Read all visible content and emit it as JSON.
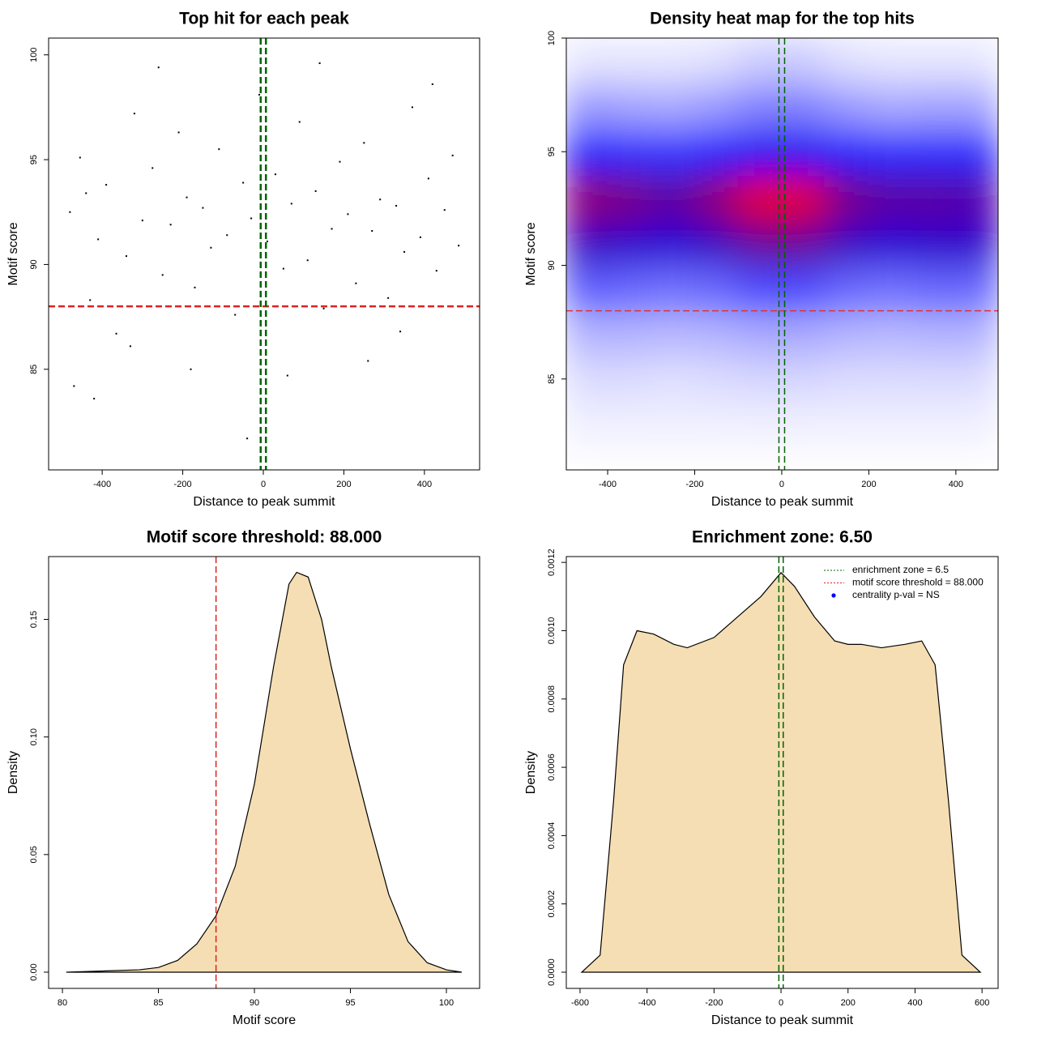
{
  "chart_data": [
    {
      "type": "scatter",
      "title": "Top hit for each peak",
      "x_label": "Distance to peak summit",
      "y_label": "Motif score",
      "xlim": [
        -533,
        537
      ],
      "ylim": [
        80.2,
        100.8
      ],
      "xticks": [
        -400,
        -200,
        0,
        200,
        400
      ],
      "yticks": [
        85,
        90,
        95,
        100
      ],
      "color": "#000000",
      "x": [
        -480,
        -455,
        -430,
        -410,
        -390,
        -365,
        -340,
        -320,
        -300,
        -275,
        -250,
        -230,
        -210,
        -190,
        -170,
        -150,
        -130,
        -110,
        -90,
        -70,
        -50,
        -30,
        -10,
        10,
        30,
        50,
        70,
        90,
        110,
        130,
        150,
        170,
        190,
        210,
        230,
        250,
        270,
        290,
        310,
        330,
        350,
        370,
        390,
        410,
        430,
        450,
        470,
        485,
        -470,
        -420,
        -330,
        -260,
        -180,
        -40,
        60,
        140,
        260,
        340,
        420,
        -440
      ],
      "y": [
        92.5,
        95.1,
        88.3,
        91.2,
        93.8,
        86.7,
        90.4,
        97.2,
        92.1,
        94.6,
        89.5,
        91.9,
        96.3,
        93.2,
        88.9,
        92.7,
        90.8,
        95.5,
        91.4,
        87.6,
        93.9,
        92.2,
        98.1,
        91.1,
        94.3,
        89.8,
        92.9,
        96.8,
        90.2,
        93.5,
        87.9,
        91.7,
        94.9,
        92.4,
        89.1,
        95.8,
        91.6,
        93.1,
        88.4,
        92.8,
        90.6,
        97.5,
        91.3,
        94.1,
        89.7,
        92.6,
        95.2,
        90.9,
        84.2,
        83.6,
        86.1,
        99.4,
        85.0,
        81.7,
        84.7,
        99.6,
        85.4,
        86.8,
        98.6,
        93.4
      ],
      "reference_lines": [
        {
          "axis": "y",
          "value": 88,
          "color": "#dd2222"
        },
        {
          "axis": "x",
          "value": -6.5,
          "color": "#006400"
        },
        {
          "axis": "x",
          "value": 6.5,
          "color": "#006400"
        }
      ]
    },
    {
      "type": "heatmap",
      "title": "Density heat map for the top hits",
      "x_label": "Distance to peak summit",
      "y_label": "Motif score",
      "xlim": [
        -495,
        497
      ],
      "ylim": [
        81,
        100
      ],
      "xticks": [
        -400,
        -200,
        0,
        200,
        400
      ],
      "yticks": [
        85,
        90,
        95,
        100
      ],
      "colors": [
        "#ffffff",
        "#0000ff",
        "#ff0000"
      ],
      "x": [
        -450,
        -350,
        -250,
        -150,
        -50,
        50,
        150,
        250,
        350,
        450
      ],
      "y": [
        83,
        85,
        87,
        89,
        91,
        93,
        95,
        97,
        99
      ],
      "z": [
        [
          0.03,
          0.03,
          0.03,
          0.03,
          0.03,
          0.03,
          0.03,
          0.03,
          0.03,
          0.03
        ],
        [
          0.07,
          0.07,
          0.06,
          0.07,
          0.08,
          0.08,
          0.07,
          0.07,
          0.07,
          0.07
        ],
        [
          0.15,
          0.15,
          0.14,
          0.15,
          0.17,
          0.17,
          0.15,
          0.14,
          0.15,
          0.15
        ],
        [
          0.32,
          0.3,
          0.28,
          0.3,
          0.36,
          0.36,
          0.3,
          0.28,
          0.3,
          0.3
        ],
        [
          0.62,
          0.6,
          0.58,
          0.62,
          0.7,
          0.7,
          0.62,
          0.58,
          0.6,
          0.6
        ],
        [
          0.78,
          0.74,
          0.68,
          0.78,
          0.95,
          0.95,
          0.74,
          0.68,
          0.68,
          0.66
        ],
        [
          0.44,
          0.42,
          0.4,
          0.45,
          0.52,
          0.52,
          0.44,
          0.42,
          0.42,
          0.42
        ],
        [
          0.2,
          0.18,
          0.17,
          0.2,
          0.25,
          0.25,
          0.2,
          0.17,
          0.18,
          0.18
        ],
        [
          0.05,
          0.05,
          0.05,
          0.06,
          0.1,
          0.1,
          0.06,
          0.05,
          0.05,
          0.05
        ]
      ],
      "reference_lines": [
        {
          "axis": "y",
          "value": 88,
          "color": "#dd3333"
        },
        {
          "axis": "x",
          "value": -6.5,
          "color": "#006400"
        },
        {
          "axis": "x",
          "value": 6.5,
          "color": "#006400"
        }
      ]
    },
    {
      "type": "area",
      "title": "Motif score threshold: 88.000",
      "x_label": "Motif score",
      "y_label": "Density",
      "xlim": [
        79.28,
        101.73
      ],
      "ylim": [
        -0.0069,
        0.1767
      ],
      "xticks": [
        80,
        85,
        90,
        95,
        100
      ],
      "yticks": [
        {
          "value": 0,
          "label": "0.00"
        },
        0.05,
        {
          "value": 0.1,
          "label": "0.10"
        },
        0.15
      ],
      "color": "#f5deb3",
      "x": [
        80.2,
        84,
        85,
        86,
        87,
        88,
        89,
        90,
        91,
        91.8,
        92.2,
        92.8,
        93.5,
        94,
        95,
        96,
        97,
        98,
        99,
        100,
        100.8
      ],
      "y": [
        0,
        0.001,
        0.002,
        0.005,
        0.012,
        0.024,
        0.045,
        0.08,
        0.13,
        0.165,
        0.17,
        0.168,
        0.15,
        0.13,
        0.095,
        0.063,
        0.033,
        0.013,
        0.004,
        0.001,
        0
      ],
      "reference_lines": [
        {
          "axis": "x",
          "value": 88,
          "color": "#dd2222"
        }
      ]
    },
    {
      "type": "area",
      "title": "Enrichment zone: 6.50",
      "x_label": "Distance to peak summit",
      "y_label": "Density",
      "xlim": [
        -641,
        648
      ],
      "ylim": [
        -4.74e-05,
        0.001217
      ],
      "xticks": [
        -600,
        -400,
        -200,
        0,
        200,
        400,
        600
      ],
      "yticks": [
        {
          "value": 0,
          "label": "0.0000"
        },
        0.0002,
        0.0004,
        0.0006,
        0.0008,
        {
          "value": 0.001,
          "label": "0.0010"
        },
        0.0012
      ],
      "color": "#f5deb3",
      "x": [
        -595,
        -540,
        -500,
        -470,
        -430,
        -380,
        -320,
        -280,
        -200,
        -130,
        -60,
        0,
        40,
        100,
        160,
        200,
        240,
        300,
        370,
        420,
        460,
        500,
        540,
        595
      ],
      "y": [
        0,
        5e-05,
        0.0005,
        0.0009,
        0.001,
        0.00099,
        0.00096,
        0.00095,
        0.00098,
        0.00104,
        0.0011,
        0.00117,
        0.00113,
        0.00104,
        0.00097,
        0.00096,
        0.00096,
        0.00095,
        0.00096,
        0.00097,
        0.0009,
        0.0005,
        5e-05,
        0
      ],
      "reference_lines": [
        {
          "axis": "x",
          "value": -6.5,
          "color": "#006400"
        },
        {
          "axis": "x",
          "value": 6.5,
          "color": "#006400"
        }
      ],
      "legend": [
        {
          "label": "enrichment zone = 6.5",
          "color": "#006400",
          "style": "dotted"
        },
        {
          "label": "motif score threshold = 88.000",
          "color": "#dd2222",
          "style": "dotted"
        },
        {
          "label": "centrality p-val = NS",
          "color": "#0000ff",
          "style": "point"
        }
      ]
    }
  ]
}
